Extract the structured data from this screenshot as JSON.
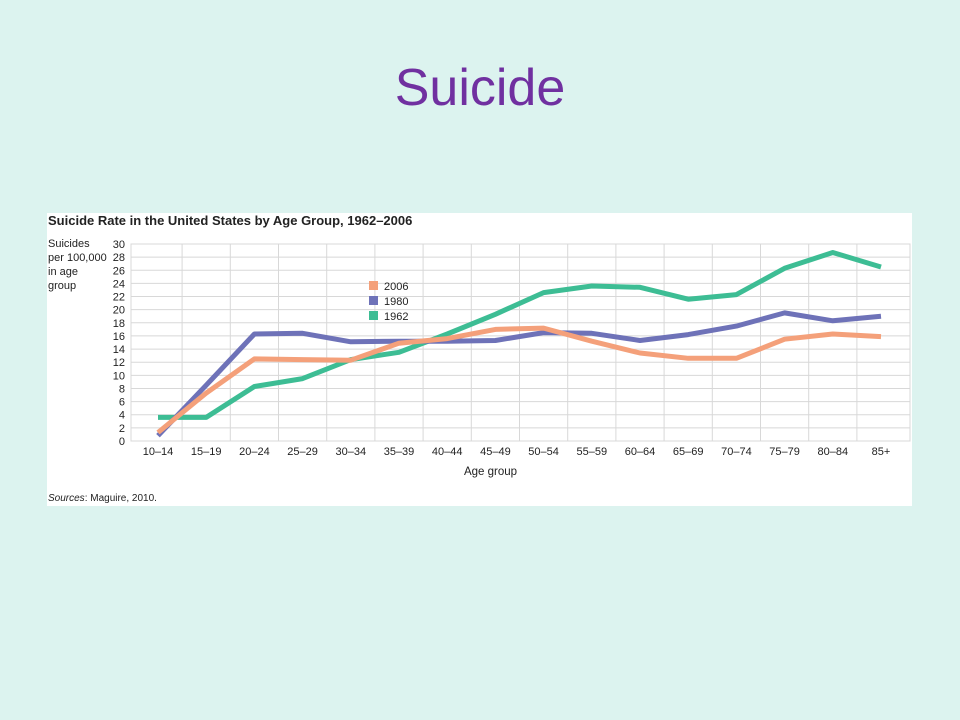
{
  "slide": {
    "title": "Suicide"
  },
  "figure": {
    "source_label": "Sources",
    "source_text": ": Maguire, 2010."
  },
  "colors": {
    "2006": "#f4a07a",
    "1980": "#6e72b8",
    "1962": "#3dbd94"
  },
  "chart_data": {
    "type": "line",
    "title": "Suicide Rate in the United States by Age Group, 1962–2006",
    "xlabel": "Age group",
    "ylabel": "Suicides per 100,000 in age group",
    "ylim": [
      0,
      30
    ],
    "yticks": [
      0,
      2,
      4,
      6,
      8,
      10,
      12,
      14,
      16,
      18,
      20,
      22,
      24,
      26,
      28,
      30
    ],
    "grid": true,
    "legend_position": "inside, upper-left of center",
    "categories": [
      "10–14",
      "15–19",
      "20–24",
      "25–29",
      "30–34",
      "35–39",
      "40–44",
      "45–49",
      "50–54",
      "55–59",
      "60–64",
      "65–69",
      "70–74",
      "75–79",
      "80–84",
      "85+"
    ],
    "series": [
      {
        "name": "2006",
        "values": [
          1.3,
          7.3,
          12.5,
          12.4,
          12.3,
          14.9,
          15.6,
          17.0,
          17.2,
          15.2,
          13.4,
          12.6,
          12.6,
          15.5,
          16.3,
          15.9
        ]
      },
      {
        "name": "1980",
        "values": [
          0.8,
          8.5,
          16.3,
          16.4,
          15.1,
          15.2,
          15.2,
          15.3,
          16.5,
          16.4,
          15.3,
          16.2,
          17.5,
          19.5,
          18.3,
          19.0
        ]
      },
      {
        "name": "1962",
        "values": [
          3.6,
          3.6,
          8.3,
          9.5,
          12.4,
          13.5,
          16.3,
          19.3,
          22.6,
          23.6,
          23.4,
          21.6,
          22.3,
          26.3,
          28.7,
          26.5
        ]
      }
    ]
  }
}
